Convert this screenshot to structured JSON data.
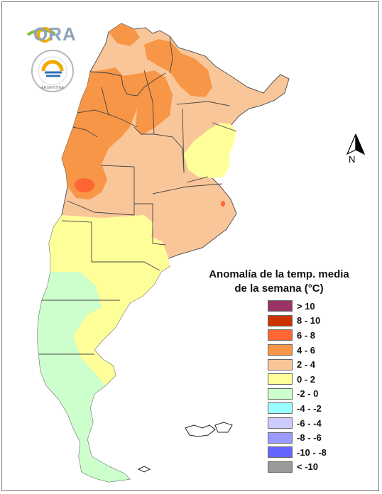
{
  "map": {
    "legend_title_line1": "Anomalía de la temp. media",
    "legend_title_line2": "de la semana (°C)",
    "legend": [
      {
        "label": "> 10",
        "color": "#993366"
      },
      {
        "label": "8 - 10",
        "color": "#cc3300"
      },
      {
        "label": "6 - 8",
        "color": "#ff6633"
      },
      {
        "label": "4 - 6",
        "color": "#f79646"
      },
      {
        "label": "2 - 4",
        "color": "#f9c699"
      },
      {
        "label": "0 - 2",
        "color": "#ffff99"
      },
      {
        "label": "-2 - 0",
        "color": "#ccffcc"
      },
      {
        "label": "-4 - -2",
        "color": "#99ffff"
      },
      {
        "label": "-6 - -4",
        "color": "#ccccff"
      },
      {
        "label": "-8 - -6",
        "color": "#9999ff"
      },
      {
        "label": "-10 - -8",
        "color": "#6666ff"
      },
      {
        "label": "< -10",
        "color": "#999999"
      }
    ],
    "north_label": "N",
    "logo_text": "ORA",
    "seal_text": "ARGENTINA"
  }
}
